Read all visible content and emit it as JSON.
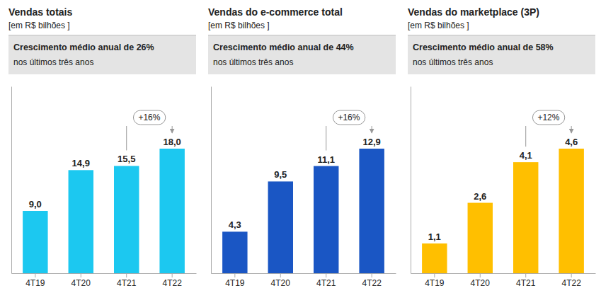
{
  "chart_data": [
    {
      "type": "bar",
      "title": "Vendas totais",
      "subtitle": "[em R$ bilhões ]",
      "categories": [
        "4T19",
        "4T20",
        "4T21",
        "4T22"
      ],
      "values": [
        9.0,
        14.9,
        15.5,
        18.0
      ],
      "value_labels": [
        "9,0",
        "14,9",
        "15,5",
        "18,0"
      ],
      "color": "#1CC8F0",
      "ylim": [
        0,
        27.0
      ],
      "yticks": [],
      "tick_labels": "x",
      "data_labels": true,
      "annotations": [
        {
          "text": "Crescimento médio anual de 26%"
        },
        {
          "text": "nos últimos três anos"
        },
        {
          "text": "+16%",
          "from": "4T21",
          "to": "4T22"
        }
      ]
    },
    {
      "type": "bar",
      "title": "Vendas do e-commerce total",
      "subtitle": "[em R$ bilhões ]",
      "categories": [
        "4T19",
        "4T20",
        "4T21",
        "4T22"
      ],
      "values": [
        4.3,
        9.5,
        11.1,
        12.9
      ],
      "value_labels": [
        "4,3",
        "9,5",
        "11,1",
        "12,9"
      ],
      "color": "#1A56C4",
      "ylim": [
        0,
        19.35
      ],
      "yticks": [],
      "tick_labels": "x",
      "data_labels": true,
      "annotations": [
        {
          "text": "Crescimento médio anual de 44%"
        },
        {
          "text": "nos últimos três anos"
        },
        {
          "text": "+16%",
          "from": "4T21",
          "to": "4T22"
        }
      ]
    },
    {
      "type": "bar",
      "title": "Vendas do marketplace (3P)",
      "subtitle": "[em R$ bilhões ]",
      "categories": [
        "4T19",
        "4T20",
        "4T21",
        "4T22"
      ],
      "values": [
        1.1,
        2.6,
        4.1,
        4.6
      ],
      "value_labels": [
        "1,1",
        "2,6",
        "4,1",
        "4,6"
      ],
      "color": "#FFBF00",
      "ylim": [
        0,
        6.9
      ],
      "yticks": [],
      "tick_labels": "x",
      "data_labels": true,
      "annotations": [
        {
          "text": "Crescimento médio anual de 58%"
        },
        {
          "text": "nos últimos três anos"
        },
        {
          "text": "+12%",
          "from": "4T21",
          "to": "4T22"
        }
      ]
    }
  ]
}
